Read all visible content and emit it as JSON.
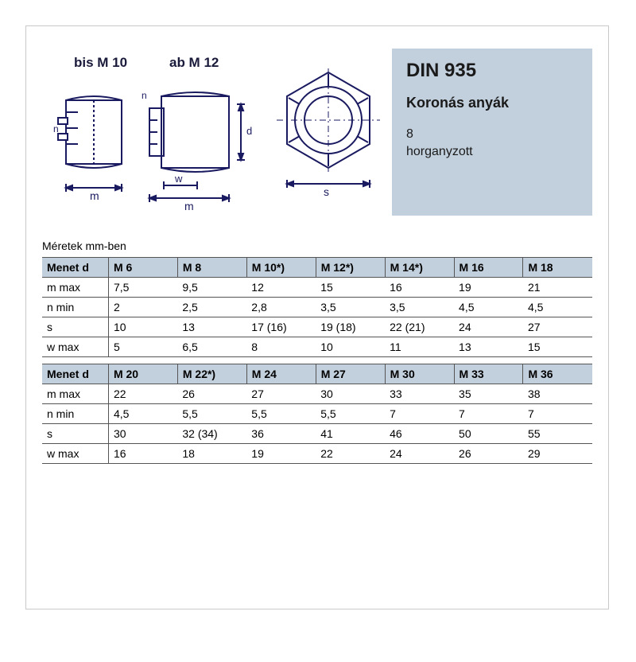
{
  "drawing": {
    "label_bis": "bis M 10",
    "label_ab": "ab M 12",
    "dim_m": "m",
    "dim_w": "w",
    "dim_s": "s",
    "dim_n": "n",
    "dim_d": "d",
    "stroke": "#1a1a60",
    "stroke_w": 2
  },
  "info": {
    "title": "DIN 935",
    "subtitle": "Koronás anyák",
    "spec_line1": "8",
    "spec_line2": "horganyzott",
    "bg": "#c2cfdc"
  },
  "caption": "Méretek mm-ben",
  "table1": {
    "header": [
      "Menet d",
      "M 6",
      "M 8",
      "M 10*)",
      "M 12*)",
      "M 14*)",
      "M 16",
      "M 18"
    ],
    "rows": [
      [
        "m max",
        "7,5",
        "9,5",
        "12",
        "15",
        "16",
        "19",
        "21"
      ],
      [
        "n min",
        "2",
        "2,5",
        "2,8",
        "3,5",
        "3,5",
        "4,5",
        "4,5"
      ],
      [
        "s",
        "10",
        "13",
        "17 (16)",
        "19 (18)",
        "22 (21)",
        "24",
        "27"
      ],
      [
        "w max",
        "5",
        "6,5",
        "8",
        "10",
        "11",
        "13",
        "15"
      ]
    ]
  },
  "table2": {
    "header": [
      "Menet d",
      "M 20",
      "M 22*)",
      "M 24",
      "M 27",
      "M 30",
      "M 33",
      "M 36"
    ],
    "rows": [
      [
        "m max",
        "22",
        "26",
        "27",
        "30",
        "33",
        "35",
        "38"
      ],
      [
        "n min",
        "4,5",
        "5,5",
        "5,5",
        "5,5",
        "7",
        "7",
        "7"
      ],
      [
        "s",
        "30",
        "32 (34)",
        "36",
        "41",
        "46",
        "50",
        "55"
      ],
      [
        "w max",
        "16",
        "18",
        "19",
        "22",
        "24",
        "26",
        "29"
      ]
    ]
  },
  "col_widths_pct": [
    12,
    12.5,
    12.5,
    12.5,
    12.5,
    12.5,
    12.5,
    12.5
  ]
}
